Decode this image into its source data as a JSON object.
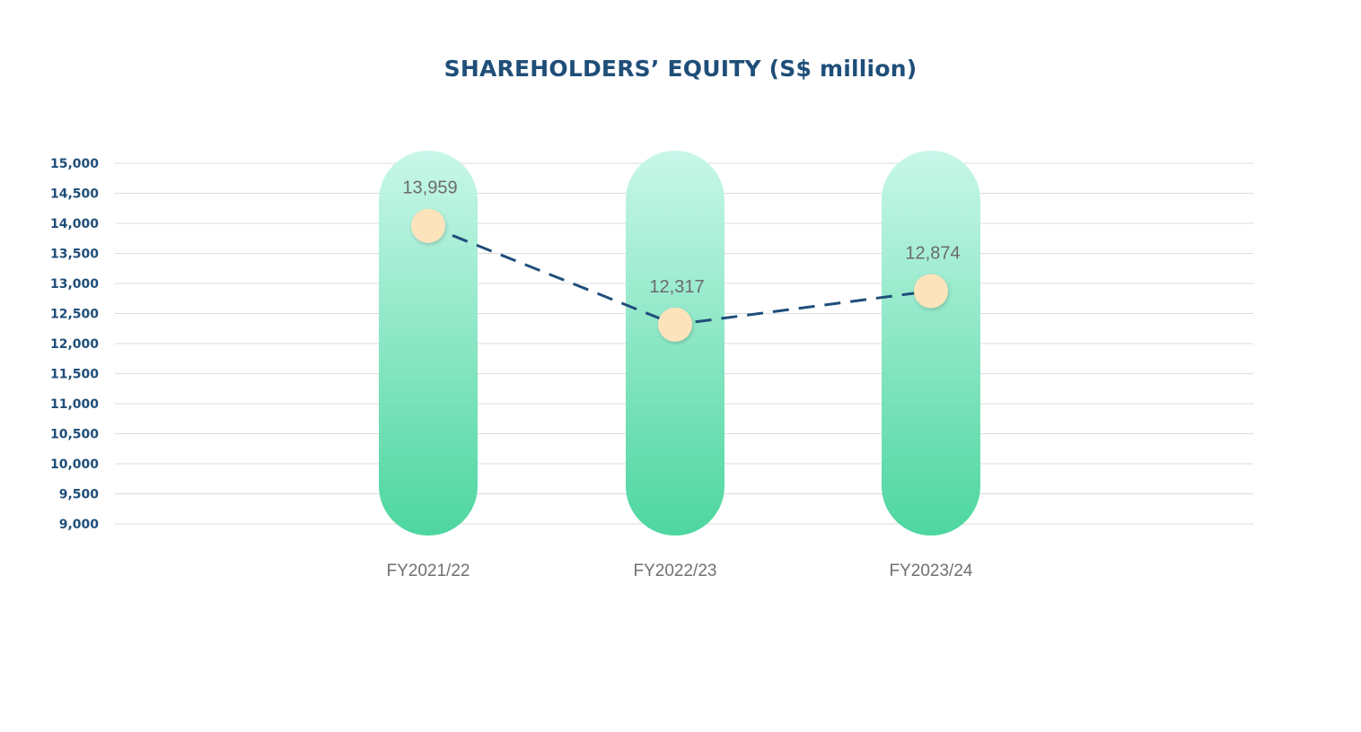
{
  "chart_data": {
    "type": "line",
    "title": "SHAREHOLDERS’ EQUITY (S$ million)",
    "xlabel": "",
    "ylabel": "",
    "categories": [
      "FY2021/22",
      "FY2022/23",
      "FY2023/24"
    ],
    "series": [
      {
        "values": [
          13959,
          12317,
          12874
        ]
      }
    ],
    "data_labels": [
      "13,959",
      "12,317",
      "12,874"
    ],
    "ylim": [
      9000,
      15000
    ],
    "yticks": [
      9000,
      9500,
      10000,
      10500,
      11000,
      11500,
      12000,
      12500,
      13000,
      13500,
      14000,
      14500,
      15000
    ],
    "ytick_labels": [
      "9,000",
      "9,500",
      "10,000",
      "10,500",
      "11,000",
      "11,500",
      "12,000",
      "12,500",
      "13,000",
      "13,500",
      "14,000",
      "14,500",
      "15,000"
    ],
    "grid": true,
    "legend": "none",
    "line_style": "dashed",
    "colors": {
      "title": "#1f4e79",
      "line": "#1f4e79",
      "marker": "#fde3bb",
      "pill_top": "#c8f7e9",
      "pill_bottom": "#4dd6a0",
      "grid": "#dcdcdc",
      "tick_text": "#707070",
      "label_text": "#6b6b6b"
    }
  }
}
